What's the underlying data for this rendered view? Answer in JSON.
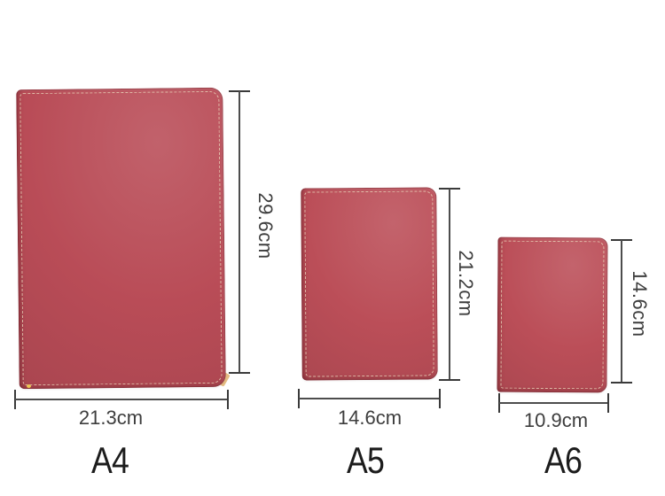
{
  "page": {
    "background_color": "#ffffff",
    "dimension_line_color": "#4d4d4d",
    "dimension_text_color": "#3d3d3d",
    "label_text_color": "#1c1c1c"
  },
  "products": [
    {
      "name": "A4 notebook",
      "label": "A4",
      "height": "29.6cm",
      "width": "21.3cm",
      "cover_color": "#b94c57",
      "stitch_color": "#eee3c4"
    },
    {
      "name": "A5 notebook",
      "label": "A5",
      "height": "21.2cm",
      "width": "14.6cm",
      "cover_color": "#bb4e58",
      "stitch_color": "#eee3c4"
    },
    {
      "name": "A6 notebook",
      "label": "A6",
      "height": "14.6cm",
      "width": "10.9cm",
      "cover_color": "#bb4e58",
      "stitch_color": "#eee3c4"
    }
  ]
}
